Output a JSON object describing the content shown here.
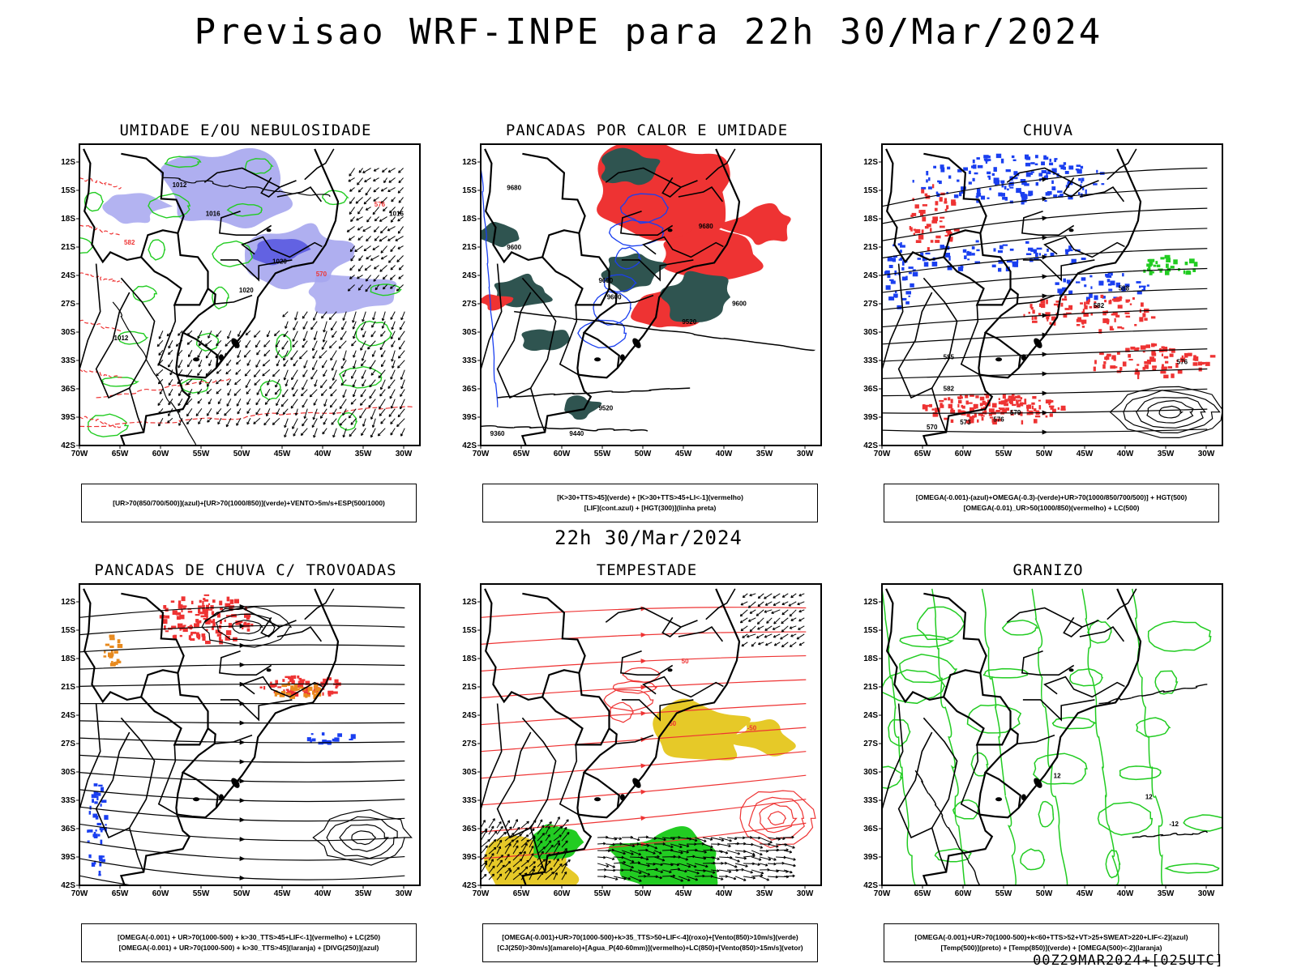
{
  "header": {
    "title": "Previsao WRF-INPE  para 22h 30/Mar/2024"
  },
  "middle": {
    "date": "22h 30/Mar/2024"
  },
  "footer": {
    "stamp": "00Z29MAR2024+[025UTC]"
  },
  "colors": {
    "green": "#22cc22",
    "red": "#ee3333",
    "blue": "#1a3ff0",
    "lavender": "#a6a6ee",
    "darkteal": "#2f5450",
    "yellow": "#e6c928",
    "orange": "#e88a1e",
    "purple": "#6a3ad0"
  },
  "axes": {
    "lon_labels": [
      "70W",
      "65W",
      "60W",
      "55W",
      "50W",
      "45W",
      "40W",
      "35W",
      "30W"
    ],
    "lat_labels": [
      "12S",
      "15S",
      "18S",
      "21S",
      "24S",
      "27S",
      "30S",
      "33S",
      "36S",
      "39S",
      "42S"
    ]
  },
  "panels": [
    {
      "title": "UMIDADE E/OU NEBULOSIDADE",
      "legend": [
        "[UR>70(850/700/500)](azul)+[UR>70(1000/850)](verde)+VENTO>5m/s+ESP(500/1000)"
      ],
      "contour_labels": [
        "1012",
        "1016",
        "1020",
        "570",
        "576",
        "582"
      ]
    },
    {
      "title": "PANCADAS POR CALOR E UMIDADE",
      "legend": [
        "[K>30+TTS>45](verde) + [K>30+TTS>45+LI<-1](vermelho)",
        "[LIF](cont.azul) + [HGT(300)](linha preta)"
      ],
      "contour_labels": [
        "9680",
        "9600",
        "9520",
        "9440",
        "9360"
      ]
    },
    {
      "title": "CHUVA",
      "legend": [
        "[OMEGA(-0.001)-(azul)+OMEGA(-0.3)-(verde)+UR>70(1000/850/700/500)] + HGT(500)",
        "[OMEGA(-0.01)_UR>50(1000/850)(vermelho) + LC(500)"
      ],
      "contour_labels": [
        "588",
        "582",
        "576",
        "570"
      ]
    },
    {
      "title": "PANCADAS DE CHUVA C/ TROVOADAS",
      "legend": [
        "[OMEGA(-0.001) + UR>70(1000-500) + k>30_TTS>45+LIF<-1](vermelho) + LC(250)",
        "[OMEGA(-0.001) + UR>70(1000-500) + k>30_TTS>45](laranja) + [DIVG(250)](azul)"
      ],
      "contour_labels": []
    },
    {
      "title": "TEMPESTADE",
      "legend": [
        "[OMEGA(-0.001)+UR>70(1000-500)+k>35_TTS>50+LIF<-4](roxo)+[Vento(850)>10m/s](verde)",
        "[CJ(250)>30m/s](amarelo)+[Agua_P(40-60mm)](vermelho)+LC(850)+[Vento(850)>15m/s](vetor)"
      ],
      "contour_labels": [
        "50",
        "-50"
      ]
    },
    {
      "title": "GRANIZO",
      "legend": [
        "[OMEGA(-0.001)+UR>70(1000-500)+k<60+TTS>52+VT>25+SWEAT>220+LIF<-2](azul)",
        "[Temp(500)](preto) + [Temp(850)](verde) + [OMEGA(500)<-2](laranja)"
      ],
      "contour_labels": [
        "12",
        "-12"
      ]
    }
  ],
  "chart_data": [
    {
      "type": "heatmap",
      "title": "UMIDADE E/OU NEBULOSIDADE",
      "xlim": [
        "70W",
        "30W"
      ],
      "ylim": [
        "42S",
        "11S"
      ],
      "series": [
        "UR>70 850/700/500 (azul)",
        "UR>70 1000/850 (verde)",
        "Vento>5m/s (vetor)",
        "ESP 500/1000 (vermelho)",
        "Pressao (preto)"
      ],
      "isolines": [
        1012,
        1016,
        1020
      ]
    },
    {
      "type": "heatmap",
      "title": "PANCADAS POR CALOR E UMIDADE",
      "xlim": [
        "70W",
        "30W"
      ],
      "ylim": [
        "42S",
        "11S"
      ],
      "series": [
        "K>30+TTS>45 (verde)",
        "K>30+TTS>45+LI<-1 (vermelho)",
        "LIF (azul)",
        "HGT 300 (preto)"
      ],
      "isolines": [
        9680,
        9600,
        9520,
        9440,
        9360
      ]
    },
    {
      "type": "heatmap",
      "title": "CHUVA",
      "xlim": [
        "70W",
        "30W"
      ],
      "ylim": [
        "42S",
        "11S"
      ],
      "series": [
        "OMEGA -0.001 (azul)",
        "OMEGA -0.3 (verde)",
        "OMEGA -0.01 UR>50 (vermelho)",
        "LC 500 (preto)"
      ],
      "isolines": [
        588,
        582,
        576,
        570
      ]
    },
    {
      "type": "heatmap",
      "title": "PANCADAS DE CHUVA C/ TROVOADAS",
      "xlim": [
        "70W",
        "30W"
      ],
      "ylim": [
        "42S",
        "11S"
      ],
      "series": [
        "vermelho",
        "laranja",
        "DIVG 250 (azul)",
        "LC 250 (preto)"
      ],
      "isolines": []
    },
    {
      "type": "heatmap",
      "title": "TEMPESTADE",
      "xlim": [
        "70W",
        "30W"
      ],
      "ylim": [
        "42S",
        "11S"
      ],
      "series": [
        "roxo",
        "Vento 850>10m/s (verde)",
        "CJ 250>30m/s (amarelo)",
        "Agua_P 40-60mm (vermelho)",
        "Vento 850>15m/s (vetor)"
      ],
      "isolines": [
        50,
        -50
      ]
    },
    {
      "type": "heatmap",
      "title": "GRANIZO",
      "xlim": [
        "70W",
        "30W"
      ],
      "ylim": [
        "42S",
        "11S"
      ],
      "series": [
        "azul",
        "Temp 500 (preto)",
        "Temp 850 (verde)",
        "OMEGA 500<-2 (laranja)"
      ],
      "isolines": [
        12,
        -12
      ]
    }
  ]
}
